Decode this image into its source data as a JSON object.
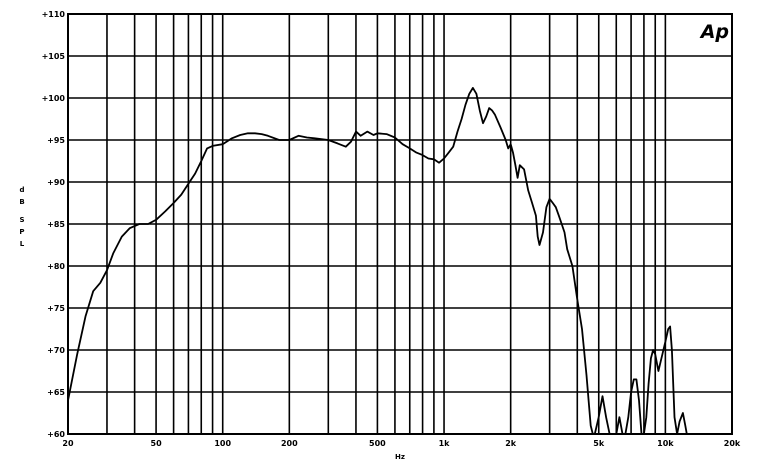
{
  "chart_data": {
    "type": "line",
    "title": "",
    "xlabel": "Hz",
    "ylabel": "dB SPL",
    "x_scale": "log",
    "xlim": [
      20,
      20000
    ],
    "ylim": [
      60,
      110
    ],
    "grid": true,
    "logo": "Ap",
    "x_ticks": [
      {
        "value": 20,
        "label": "20"
      },
      {
        "value": 50,
        "label": "50"
      },
      {
        "value": 100,
        "label": "100"
      },
      {
        "value": 200,
        "label": "200"
      },
      {
        "value": 500,
        "label": "500"
      },
      {
        "value": 1000,
        "label": "1k"
      },
      {
        "value": 2000,
        "label": "2k"
      },
      {
        "value": 5000,
        "label": "5k"
      },
      {
        "value": 10000,
        "label": "10k"
      },
      {
        "value": 20000,
        "label": "20k"
      }
    ],
    "y_ticks": [
      {
        "value": 110,
        "label": "+110"
      },
      {
        "value": 105,
        "label": "+105"
      },
      {
        "value": 100,
        "label": "+100"
      },
      {
        "value": 95,
        "label": "+95"
      },
      {
        "value": 90,
        "label": "+90"
      },
      {
        "value": 85,
        "label": "+85"
      },
      {
        "value": 80,
        "label": "+80"
      },
      {
        "value": 75,
        "label": "+75"
      },
      {
        "value": 70,
        "label": "+70"
      },
      {
        "value": 65,
        "label": "+65"
      },
      {
        "value": 60,
        "label": "+60"
      }
    ],
    "series": [
      {
        "color": "#000000",
        "points": [
          [
            20,
            64
          ],
          [
            22,
            69.5
          ],
          [
            24,
            74
          ],
          [
            26,
            77
          ],
          [
            28,
            78
          ],
          [
            30,
            79.5
          ],
          [
            32,
            81.5
          ],
          [
            35,
            83.5
          ],
          [
            38,
            84.5
          ],
          [
            42,
            85
          ],
          [
            46,
            85
          ],
          [
            50,
            85.5
          ],
          [
            55,
            86.5
          ],
          [
            60,
            87.5
          ],
          [
            65,
            88.5
          ],
          [
            70,
            89.8
          ],
          [
            75,
            91
          ],
          [
            80,
            92.5
          ],
          [
            85,
            94
          ],
          [
            90,
            94.3
          ],
          [
            100,
            94.5
          ],
          [
            110,
            95.2
          ],
          [
            120,
            95.6
          ],
          [
            130,
            95.8
          ],
          [
            140,
            95.8
          ],
          [
            150,
            95.7
          ],
          [
            160,
            95.5
          ],
          [
            180,
            95
          ],
          [
            200,
            95
          ],
          [
            220,
            95.5
          ],
          [
            240,
            95.3
          ],
          [
            260,
            95.2
          ],
          [
            300,
            95
          ],
          [
            330,
            94.6
          ],
          [
            360,
            94.2
          ],
          [
            380,
            94.8
          ],
          [
            400,
            96
          ],
          [
            420,
            95.5
          ],
          [
            450,
            96
          ],
          [
            480,
            95.6
          ],
          [
            500,
            95.8
          ],
          [
            550,
            95.7
          ],
          [
            600,
            95.3
          ],
          [
            650,
            94.5
          ],
          [
            700,
            94
          ],
          [
            750,
            93.5
          ],
          [
            800,
            93.2
          ],
          [
            850,
            92.8
          ],
          [
            900,
            92.7
          ],
          [
            950,
            92.3
          ],
          [
            1000,
            92.8
          ],
          [
            1050,
            93.5
          ],
          [
            1100,
            94.2
          ],
          [
            1150,
            96
          ],
          [
            1200,
            97.5
          ],
          [
            1250,
            99.2
          ],
          [
            1300,
            100.5
          ],
          [
            1350,
            101.2
          ],
          [
            1400,
            100.5
          ],
          [
            1450,
            98.5
          ],
          [
            1500,
            97
          ],
          [
            1550,
            97.8
          ],
          [
            1600,
            98.8
          ],
          [
            1650,
            98.5
          ],
          [
            1700,
            98
          ],
          [
            1800,
            96.5
          ],
          [
            1900,
            95
          ],
          [
            1950,
            94
          ],
          [
            2000,
            94.5
          ],
          [
            2050,
            93.5
          ],
          [
            2100,
            92
          ],
          [
            2150,
            90.5
          ],
          [
            2200,
            92
          ],
          [
            2300,
            91.5
          ],
          [
            2400,
            89
          ],
          [
            2500,
            87.5
          ],
          [
            2600,
            86
          ],
          [
            2650,
            83.5
          ],
          [
            2700,
            82.5
          ],
          [
            2800,
            84
          ],
          [
            2900,
            87
          ],
          [
            3000,
            88
          ],
          [
            3100,
            87.5
          ],
          [
            3200,
            87
          ],
          [
            3300,
            86
          ],
          [
            3400,
            85
          ],
          [
            3500,
            84
          ],
          [
            3600,
            82
          ],
          [
            3800,
            80
          ],
          [
            4000,
            76
          ],
          [
            4200,
            72.5
          ],
          [
            4400,
            67
          ],
          [
            4500,
            64
          ],
          [
            4600,
            61
          ],
          [
            4700,
            60
          ],
          [
            4800,
            60
          ],
          [
            5000,
            62
          ],
          [
            5200,
            64.5
          ],
          [
            5400,
            62
          ],
          [
            5600,
            60
          ],
          [
            5800,
            60
          ],
          [
            6000,
            60
          ],
          [
            6200,
            62
          ],
          [
            6400,
            60
          ],
          [
            6600,
            60
          ],
          [
            6800,
            62
          ],
          [
            7000,
            65
          ],
          [
            7200,
            66.5
          ],
          [
            7400,
            66.5
          ],
          [
            7600,
            64
          ],
          [
            7800,
            60
          ],
          [
            8000,
            60
          ],
          [
            8200,
            62
          ],
          [
            8400,
            66
          ],
          [
            8600,
            69
          ],
          [
            8800,
            70
          ],
          [
            9000,
            69.5
          ],
          [
            9300,
            67.5
          ],
          [
            9600,
            69
          ],
          [
            10000,
            71
          ],
          [
            10300,
            72.5
          ],
          [
            10500,
            72.8
          ],
          [
            10700,
            70
          ],
          [
            11000,
            62
          ],
          [
            11300,
            60
          ],
          [
            11600,
            61.5
          ],
          [
            12000,
            62.5
          ],
          [
            12300,
            61
          ],
          [
            12500,
            60
          ]
        ]
      }
    ]
  }
}
